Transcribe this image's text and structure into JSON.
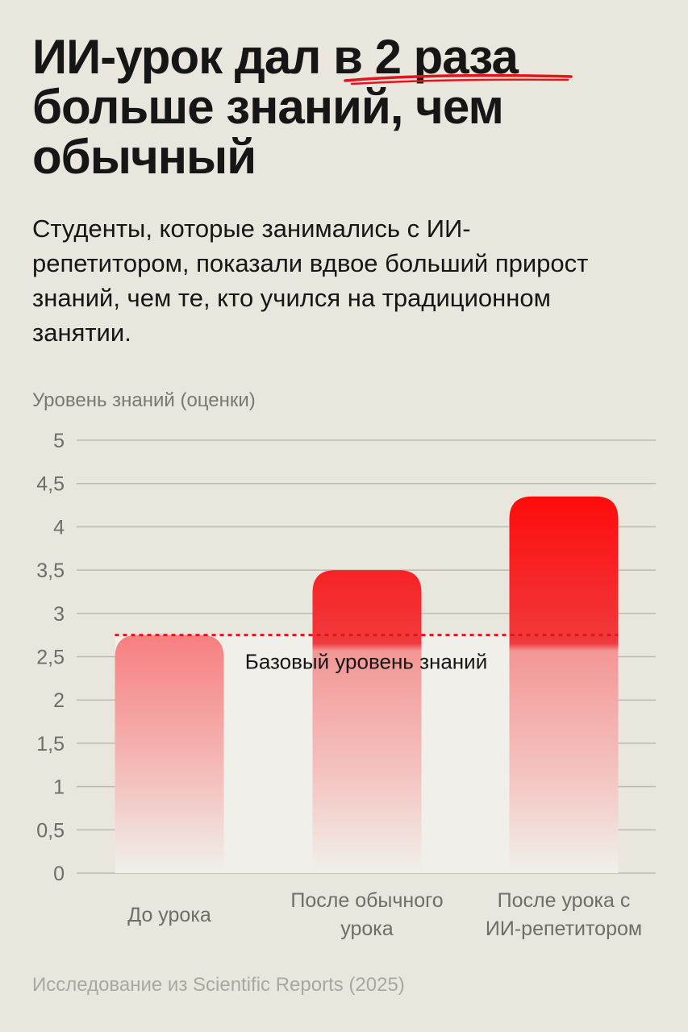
{
  "title": {
    "line1_start": "ИИ-урок дал ",
    "line1_highlight": "в 2 раза",
    "line2": "больше знаний, чем",
    "line3": "обычный"
  },
  "subtitle": "Студенты, которые занимались с ИИ-репетитором, показали вдвое больший прирост знаний, чем те, кто учился на традиционном занятии.",
  "source": "Исследование из Scientific Reports (2025)",
  "colors": {
    "accent": "#ff0f12",
    "background": "#e8e6dd",
    "grid": "#bdbab1"
  },
  "chart_data": {
    "type": "bar",
    "ylabel": "Уровень знаний (оценки)",
    "categories": [
      [
        "До урока"
      ],
      [
        "После обычного",
        "урока"
      ],
      [
        "После урока с",
        "ИИ-репетитором"
      ]
    ],
    "values": [
      2.75,
      3.5,
      4.35
    ],
    "ylim": [
      0,
      5
    ],
    "yticks": [
      0,
      0.5,
      1,
      1.5,
      2,
      2.5,
      3,
      3.5,
      4,
      4.5,
      5
    ],
    "ytick_labels": [
      "0",
      "0,5",
      "1",
      "1,5",
      "2",
      "2,5",
      "3",
      "3,5",
      "4",
      "4,5",
      "5"
    ],
    "grid": true,
    "baseline": {
      "value": 2.75,
      "label": "Базовый уровень знаний"
    }
  }
}
